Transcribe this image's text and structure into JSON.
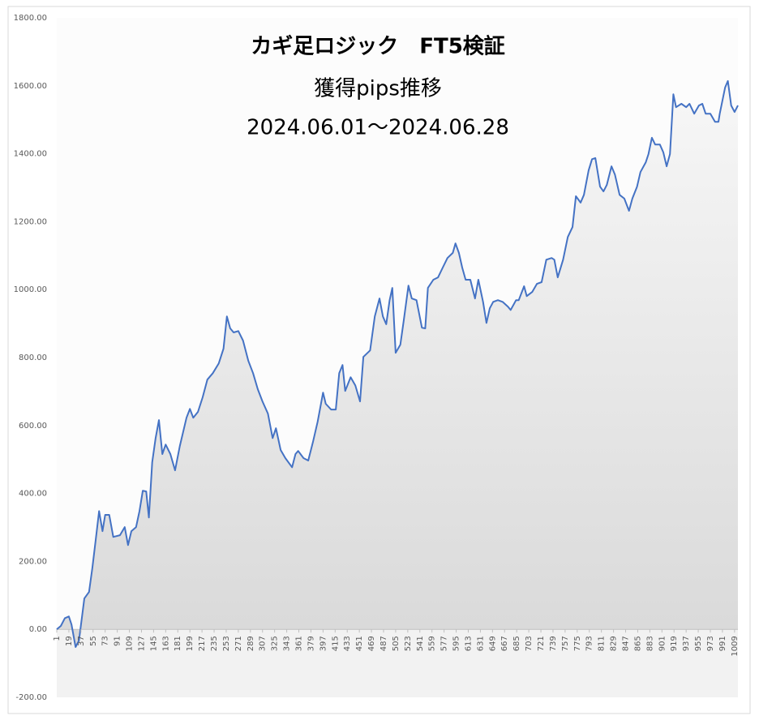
{
  "chart_data": {
    "type": "area",
    "title": "カギ足ロジック　FT5検証",
    "subtitle": [
      "獲得pips推移",
      "2024.06.01～2024.06.28"
    ],
    "color": "#4472c4",
    "x": [
      1,
      7,
      13,
      19,
      23,
      29,
      34,
      37,
      42,
      49,
      54,
      59,
      64,
      69,
      73,
      79,
      85,
      95,
      102,
      107,
      112,
      119,
      124,
      129,
      134,
      138,
      143,
      148,
      153,
      158,
      163,
      170,
      177,
      184,
      194,
      199,
      204,
      211,
      218,
      225,
      233,
      242,
      249,
      254,
      259,
      264,
      271,
      278,
      286,
      293,
      300,
      307,
      315,
      322,
      327,
      334,
      341,
      351,
      356,
      360,
      368,
      375,
      382,
      389,
      397,
      401,
      409,
      416,
      421,
      426,
      430,
      438,
      445,
      452,
      457,
      467,
      474,
      481,
      486,
      491,
      496,
      500,
      505,
      512,
      517,
      524,
      529,
      536,
      544,
      549,
      553,
      561,
      568,
      575,
      582,
      590,
      594,
      599,
      604,
      609,
      616,
      623,
      628,
      635,
      640,
      645,
      650,
      657,
      664,
      672,
      676,
      684,
      688,
      696,
      700,
      708,
      715,
      722,
      729,
      737,
      741,
      746,
      754,
      761,
      768,
      773,
      780,
      785,
      792,
      797,
      802,
      809,
      814,
      819,
      826,
      831,
      838,
      845,
      852,
      857,
      864,
      869,
      877,
      881,
      886,
      891,
      898,
      903,
      908,
      913,
      918,
      922,
      930,
      937,
      942,
      949,
      956,
      961,
      966,
      973,
      980,
      985,
      987,
      995,
      999,
      1004,
      1009,
      1014
    ],
    "values": [
      0,
      10,
      33,
      38,
      14,
      -52,
      -33,
      14,
      91,
      110,
      181,
      265,
      348,
      289,
      337,
      337,
      272,
      277,
      301,
      248,
      289,
      301,
      348,
      408,
      406,
      329,
      492,
      563,
      616,
      516,
      544,
      516,
      468,
      539,
      623,
      649,
      623,
      640,
      683,
      735,
      754,
      783,
      826,
      921,
      886,
      874,
      878,
      850,
      790,
      754,
      707,
      671,
      635,
      563,
      592,
      528,
      504,
      477,
      516,
      525,
      504,
      497,
      551,
      611,
      697,
      664,
      647,
      647,
      754,
      778,
      702,
      742,
      718,
      671,
      802,
      821,
      921,
      974,
      921,
      898,
      969,
      1005,
      814,
      838,
      909,
      1012,
      974,
      969,
      888,
      886,
      1005,
      1029,
      1036,
      1065,
      1093,
      1108,
      1136,
      1108,
      1065,
      1029,
      1029,
      974,
      1029,
      964,
      902,
      945,
      964,
      969,
      964,
      950,
      940,
      969,
      969,
      1010,
      981,
      993,
      1017,
      1022,
      1088,
      1093,
      1088,
      1036,
      1088,
      1155,
      1184,
      1275,
      1256,
      1279,
      1351,
      1384,
      1387,
      1303,
      1289,
      1308,
      1363,
      1339,
      1279,
      1268,
      1232,
      1268,
      1303,
      1346,
      1375,
      1399,
      1447,
      1427,
      1427,
      1404,
      1363,
      1399,
      1575,
      1537,
      1547,
      1537,
      1547,
      1518,
      1542,
      1547,
      1518,
      1518,
      1494,
      1494,
      1518,
      1595,
      1614,
      1542,
      1523,
      1542
    ],
    "xlim": [
      1,
      1014
    ],
    "xticks": [
      1,
      19,
      37,
      55,
      73,
      91,
      109,
      127,
      145,
      163,
      181,
      199,
      217,
      235,
      253,
      271,
      289,
      307,
      325,
      343,
      361,
      379,
      397,
      415,
      433,
      451,
      469,
      487,
      505,
      523,
      541,
      559,
      577,
      595,
      613,
      631,
      649,
      667,
      685,
      703,
      721,
      739,
      757,
      775,
      793,
      811,
      829,
      847,
      865,
      883,
      901,
      919,
      937,
      955,
      973,
      991,
      1009
    ],
    "ylim": [
      -200,
      1800
    ],
    "yticks": [
      {
        "value": -200,
        "label": "-200.00"
      },
      {
        "value": 0,
        "label": "0.00"
      },
      {
        "value": 200,
        "label": "200.00"
      },
      {
        "value": 400,
        "label": "400.00"
      },
      {
        "value": 600,
        "label": "600.00"
      },
      {
        "value": 800,
        "label": "800.00"
      },
      {
        "value": 1000,
        "label": "1000.00"
      },
      {
        "value": 1200,
        "label": "1200.00"
      },
      {
        "value": 1400,
        "label": "1400.00"
      },
      {
        "value": 1600,
        "label": "1600.00"
      },
      {
        "value": 1800,
        "label": "1800.00"
      }
    ],
    "grid": false
  }
}
